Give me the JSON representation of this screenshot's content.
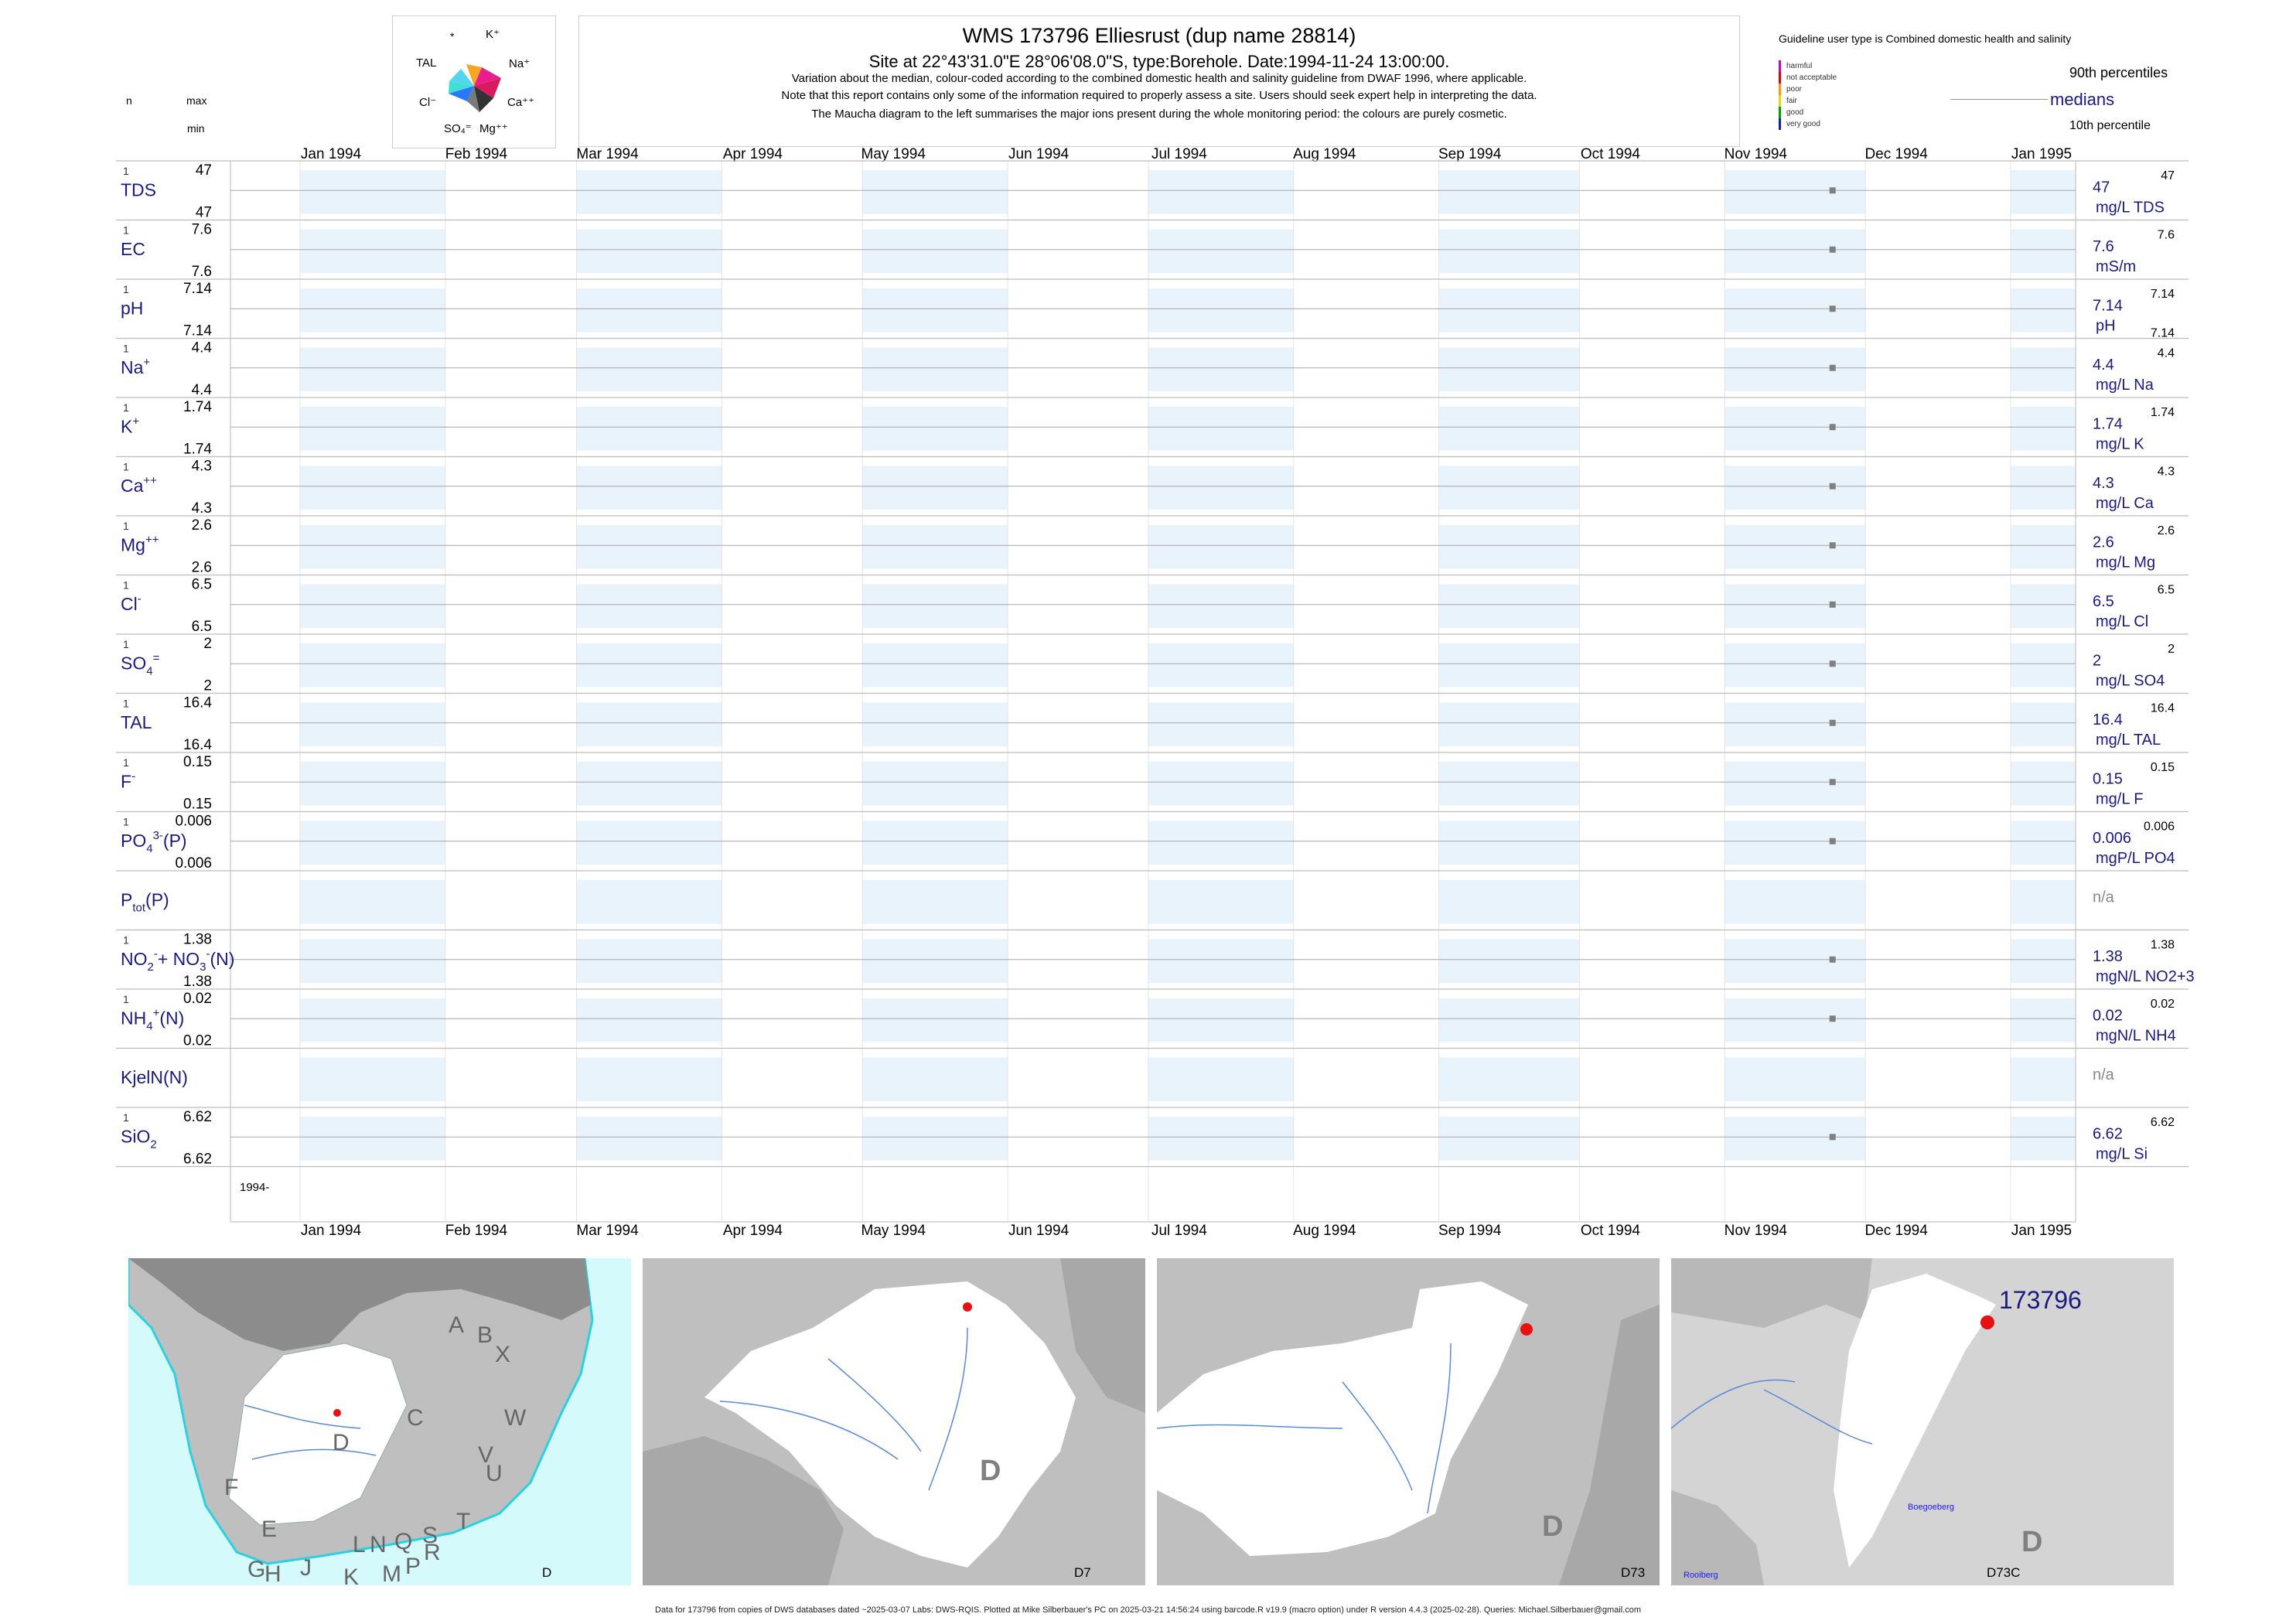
{
  "header": {
    "title": "WMS 173796  Elliesrust (dup name 28814)",
    "subtitle": "Site at 22°43'31.0\"E 28°06'08.0\"S, type:Borehole. Date:1994-11-24 13:00:00.",
    "note1": "Variation about the median,  colour-coded according to the combined domestic health and salinity guideline from DWAF 1996, where applicable.",
    "note2": "Note that this report contains only some of the information required to properly assess a site. Users should seek expert help in interpreting the data.",
    "note3": "The Maucha diagram to the left summarises the major ions present during the whole monitoring period: the colours are purely cosmetic."
  },
  "left_header": {
    "n": "n",
    "max": "max",
    "min": "min"
  },
  "maucha": {
    "labels": [
      {
        "text": "*",
        "id": "star"
      },
      {
        "text": "K⁺",
        "id": "k"
      },
      {
        "text": "TAL",
        "id": "tal"
      },
      {
        "text": "Na⁺",
        "id": "na"
      },
      {
        "text": "Cl⁻",
        "id": "cl"
      },
      {
        "text": "Ca⁺⁺",
        "id": "ca"
      },
      {
        "text": "SO₄⁼",
        "id": "so4"
      },
      {
        "text": "Mg⁺⁺",
        "id": "mg"
      }
    ]
  },
  "legend": {
    "title": "Guideline user type is Combined domestic health and salinity",
    "items": [
      {
        "label": "harmful",
        "color": "#cc00cc"
      },
      {
        "label": "not acceptable",
        "color": "#e00000"
      },
      {
        "label": "poor",
        "color": "#ff9900"
      },
      {
        "label": "fair",
        "color": "#e6d800"
      },
      {
        "label": "good",
        "color": "#00a000"
      },
      {
        "label": "very good",
        "color": "#1020c0"
      }
    ],
    "p90": "90th percentiles",
    "medians": "medians",
    "p10": "10th percentile"
  },
  "chart_data": {
    "type": "scatter",
    "x_months": [
      "Jan 1994",
      "Feb 1994",
      "Mar 1994",
      "Apr 1994",
      "May 1994",
      "Jun 1994",
      "Jul 1994",
      "Aug 1994",
      "Sep 1994",
      "Oct 1994",
      "Nov 1994",
      "Dec 1994",
      "Jan 1995"
    ],
    "x_range": [
      "1994-01-01",
      "1995-01-01"
    ],
    "sample_date": "1994-11-24",
    "bottom_label": "1994-",
    "panels": [
      {
        "label": "TDS",
        "n": "1",
        "max": "47",
        "min": "47",
        "value": 47,
        "median": "47",
        "unit": "mg/L TDS",
        "p90": "47",
        "p10": ""
      },
      {
        "label": "EC",
        "n": "1",
        "max": "7.6",
        "min": "7.6",
        "value": 7.6,
        "median": "7.6",
        "unit": "mS/m",
        "p90": "7.6",
        "p10": ""
      },
      {
        "label": "pH",
        "n": "1",
        "max": "7.14",
        "min": "7.14",
        "value": 7.14,
        "median": "7.14",
        "unit": "pH",
        "p90": "7.14",
        "p10": "7.14"
      },
      {
        "label": "Na",
        "sup": "+",
        "n": "1",
        "max": "4.4",
        "min": "4.4",
        "value": 4.4,
        "median": "4.4",
        "unit": "mg/L Na",
        "p90": "4.4",
        "p10": ""
      },
      {
        "label": "K",
        "sup": "+",
        "n": "1",
        "max": "1.74",
        "min": "1.74",
        "value": 1.74,
        "median": "1.74",
        "unit": "mg/L K",
        "p90": "1.74",
        "p10": ""
      },
      {
        "label": "Ca",
        "sup": "++",
        "n": "1",
        "max": "4.3",
        "min": "4.3",
        "value": 4.3,
        "median": "4.3",
        "unit": "mg/L Ca",
        "p90": "4.3",
        "p10": ""
      },
      {
        "label": "Mg",
        "sup": "++",
        "n": "1",
        "max": "2.6",
        "min": "2.6",
        "value": 2.6,
        "median": "2.6",
        "unit": "mg/L Mg",
        "p90": "2.6",
        "p10": ""
      },
      {
        "label": "Cl",
        "sup": "-",
        "n": "1",
        "max": "6.5",
        "min": "6.5",
        "value": 6.5,
        "median": "6.5",
        "unit": "mg/L Cl",
        "p90": "6.5",
        "p10": ""
      },
      {
        "label": "SO",
        "sub": "4",
        "sup": "=",
        "n": "1",
        "max": "2",
        "min": "2",
        "value": 2,
        "median": "2",
        "unit": "mg/L SO4",
        "p90": "2",
        "p10": ""
      },
      {
        "label": "TAL",
        "n": "1",
        "max": "16.4",
        "min": "16.4",
        "value": 16.4,
        "median": "16.4",
        "unit": "mg/L TAL",
        "p90": "16.4",
        "p10": ""
      },
      {
        "label": "F",
        "sup": "-",
        "n": "1",
        "max": "0.15",
        "min": "0.15",
        "value": 0.15,
        "median": "0.15",
        "unit": "mg/L F",
        "p90": "0.15",
        "p10": ""
      },
      {
        "label": "PO",
        "sub": "4",
        "sup": "3-",
        "tail": "(P)",
        "n": "1",
        "max": "0.006",
        "min": "0.006",
        "value": 0.006,
        "median": "0.006",
        "unit": "mgP/L PO4",
        "p90": "0.006",
        "p10": ""
      },
      {
        "label": "P",
        "sub": "tot",
        "tail": "(P)",
        "n": "",
        "max": "",
        "min": "",
        "value": null,
        "median": "n/a",
        "unit": "",
        "p90": "",
        "p10": ""
      },
      {
        "label": "NO",
        "sub": "2",
        "sup": "-",
        "tail": "+ NO",
        "sub2": "3",
        "sup2": "-",
        "tail2": "(N)",
        "n": "1",
        "max": "1.38",
        "min": "1.38",
        "value": 1.38,
        "median": "1.38",
        "unit": "mgN/L NO2+3",
        "p90": "1.38",
        "p10": ""
      },
      {
        "label": "NH",
        "sub": "4",
        "sup": "+",
        "tail": "(N)",
        "n": "1",
        "max": "0.02",
        "min": "0.02",
        "value": 0.02,
        "median": "0.02",
        "unit": "mgN/L NH4",
        "p90": "0.02",
        "p10": ""
      },
      {
        "label": "KjelN(N)",
        "n": "",
        "max": "",
        "min": "",
        "value": null,
        "median": "n/a",
        "unit": "",
        "p90": "",
        "p10": ""
      },
      {
        "label": "SiO",
        "sub": "2",
        "n": "1",
        "max": "6.62",
        "min": "6.62",
        "value": 6.62,
        "median": "6.62",
        "unit": "mg/L Si",
        "p90": "6.62",
        "p10": ""
      }
    ]
  },
  "maps": {
    "panel1": {
      "corner_label": "D",
      "regions": [
        "A",
        "B",
        "X",
        "C",
        "W",
        "D",
        "V",
        "U",
        "F",
        "T",
        "E",
        "S",
        "Q",
        "N",
        "L",
        "R",
        "G",
        "H",
        "J",
        "K",
        "M",
        "P"
      ]
    },
    "panel2": {
      "corner_label": "D7",
      "big_label": "D"
    },
    "panel3": {
      "corner_label": "D73",
      "big_label": "D"
    },
    "panel4": {
      "corner_label": "D73C",
      "big_label": "D",
      "site_label": "173796",
      "town1": "Boegoeberg",
      "town2": "Rooiberg"
    }
  },
  "colors": {
    "navy": "#1a1a80",
    "band": "#e8f3fc",
    "dot": "#808080",
    "map_water": "#d4fafc",
    "map_dark": "#8c8c8c",
    "map_mid": "#b5b5b5",
    "red_dot": "#e81010"
  },
  "footer": "Data for 173796 from copies of DWS databases dated ~2025-03-07 Labs: DWS-RQIS. Plotted at Mike Silberbauer's PC on 2025-03-21 14:56:24 using barcode.R v19.9 (macro option) under R version 4.4.3 (2025-02-28). Queries: Michael.Silberbauer@gmail.com"
}
